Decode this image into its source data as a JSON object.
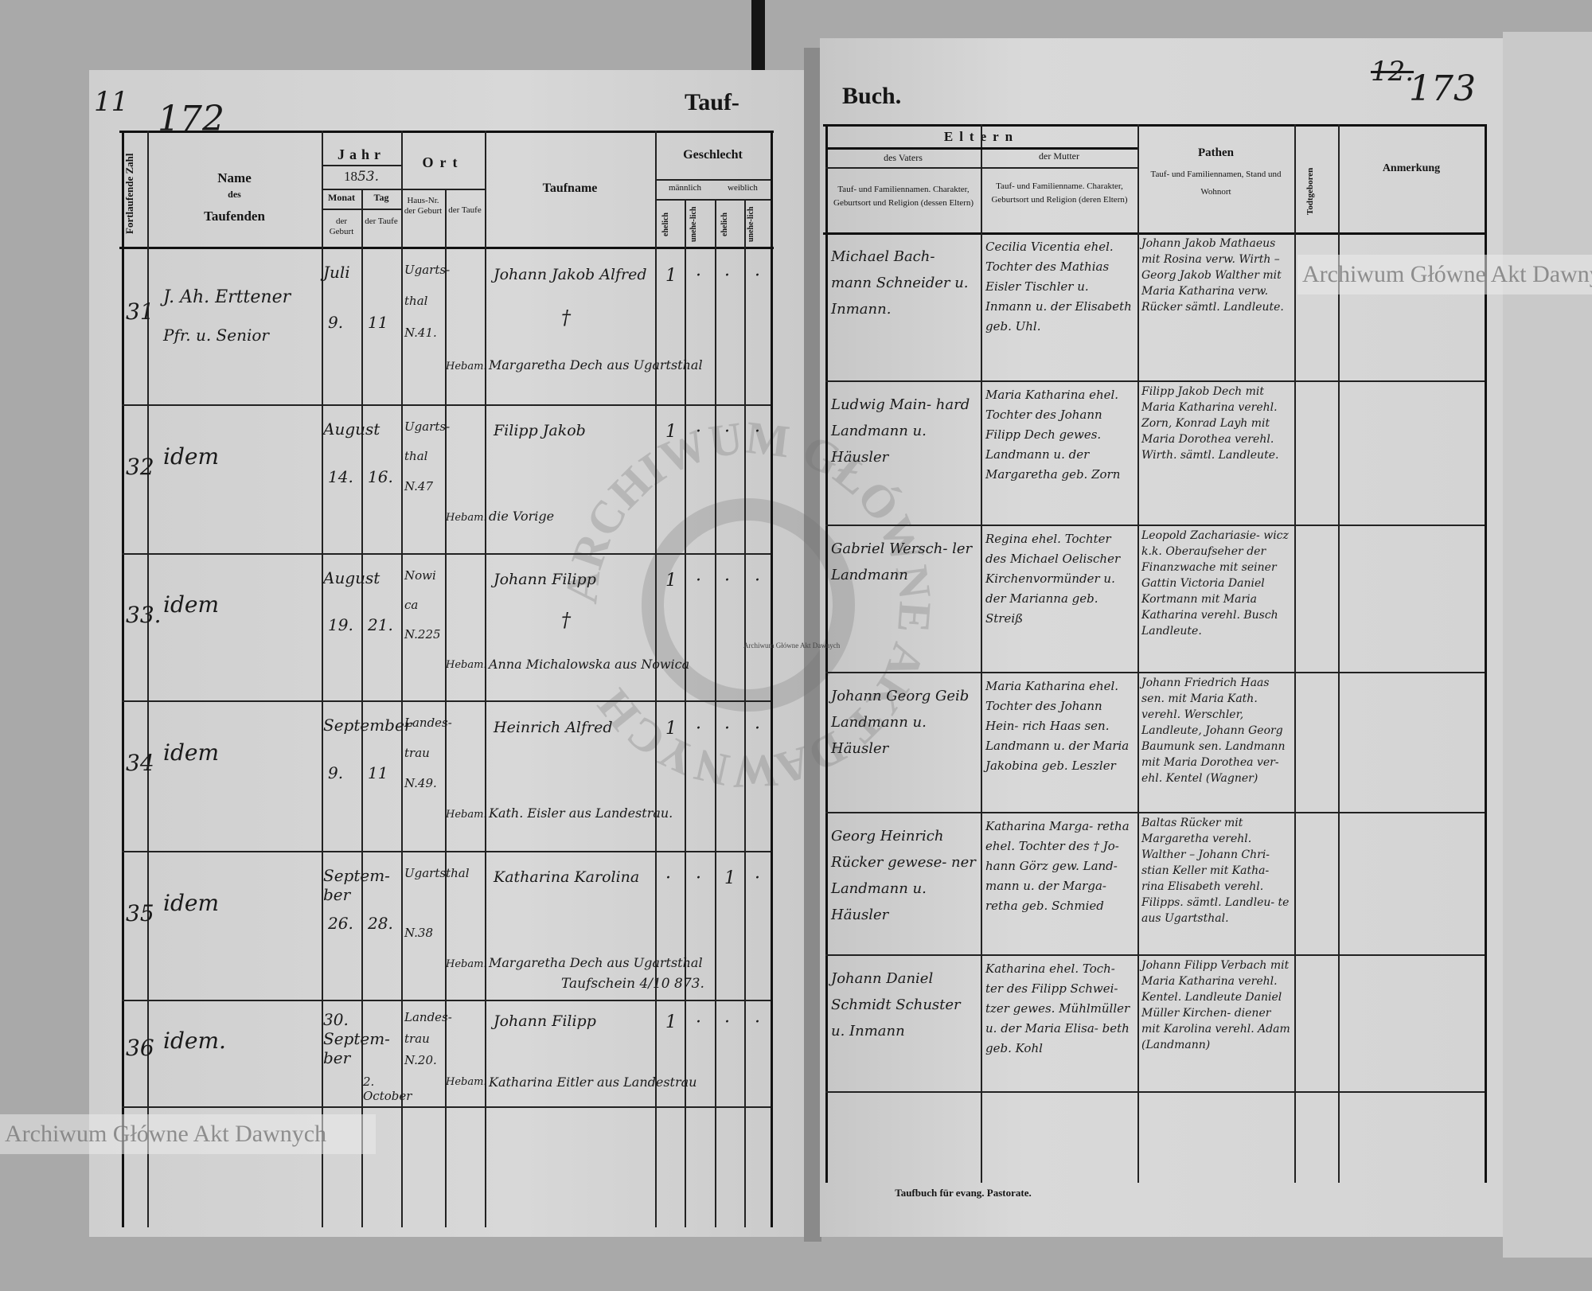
{
  "page_numbers": {
    "left_mark": "11",
    "left": "172",
    "right_struck": "12.",
    "right": "173"
  },
  "title": {
    "left": "Tauf-",
    "right": "Buch."
  },
  "left_header": {
    "serial": "Fortlaufende Zahl",
    "name": "Name",
    "name_des": "des",
    "name_taufenden": "Taufenden",
    "jahr": "Jahr",
    "year_printed": "18",
    "year_written": "53.",
    "monat": "Monat",
    "tag": "Tag",
    "der_geburt": "der Geburt",
    "der_taufe": "der Taufe",
    "ort": "Ort",
    "haus_nr": "Haus-Nr. der Geburt",
    "ort_taufe": "der Taufe",
    "taufname": "Taufname",
    "geschlecht": "Geschlecht",
    "maennlich": "männlich",
    "weiblich": "weiblich",
    "ehelich": "ehelich",
    "unehelich": "unehe-lich"
  },
  "right_header": {
    "eltern": "Eltern",
    "vater": "des Vaters",
    "mutter": "der Mutter",
    "vater_desc": "Tauf- und Familiennamen. Charakter, Geburtsort und Religion (dessen Eltern)",
    "mutter_desc": "Tauf- und Familienname. Charakter, Geburtsort und Religion (deren Eltern)",
    "pathen": "Pathen",
    "pathen_desc": "Tauf- und Familiennamen, Stand und Wohnort",
    "todtgeboren": "Todtgeboren",
    "anmerkung": "Anmerkung"
  },
  "entries": [
    {
      "no": "31",
      "name": [
        "J. Ah. Erttener",
        "Pfr. u. Senior"
      ],
      "month": "Juli",
      "day_birth": "9.",
      "day_baptism": "11",
      "house": [
        "Ugarts-",
        "thal",
        "N.41."
      ],
      "hebamme_label": "Hebam.",
      "taufname": "Johann Jakob Alfred",
      "cross": "†",
      "hebamme": "Margaretha Dech aus Ugartsthal",
      "extra": "",
      "sex": {
        "m_ehelich": "1",
        "m_unehelich": "·",
        "w_ehelich": "·",
        "w_unehelich": "·"
      },
      "father": "Michael Bach- mann Schneider u. Inmann.",
      "mother": "Cecilia Vicentia ehel. Tochter des Mathias Eisler Tischler u. Inmann u. der Elisabeth geb. Uhl.",
      "godparents": "Johann Jakob Mathaeus mit Rosina verw. Wirth – Georg Jakob Walther mit Maria Katharina verw. Rücker sämtl. Landleute."
    },
    {
      "no": "32",
      "name": [
        "idem",
        ""
      ],
      "month": "August",
      "day_birth": "14.",
      "day_baptism": "16.",
      "house": [
        "Ugarts-",
        "thal",
        "N.47"
      ],
      "hebamme_label": "Hebam.",
      "taufname": "Filipp Jakob",
      "cross": "",
      "hebamme": "die Vorige",
      "extra": "",
      "sex": {
        "m_ehelich": "1",
        "m_unehelich": "·",
        "w_ehelich": "·",
        "w_unehelich": "·"
      },
      "father": "Ludwig Main- hard Landmann u. Häusler",
      "mother": "Maria Katharina ehel. Tochter des Johann Filipp Dech gewes. Landmann u. der Margaretha geb. Zorn",
      "godparents": "Filipp Jakob Dech mit Maria Katharina verehl. Zorn, Konrad Layh mit Maria Dorothea verehl. Wirth. sämtl. Landleute."
    },
    {
      "no": "33.",
      "name": [
        "idem",
        ""
      ],
      "month": "August",
      "day_birth": "19.",
      "day_baptism": "21.",
      "house": [
        "Nowi",
        "ca",
        "N.225"
      ],
      "hebamme_label": "Hebam.",
      "taufname": "Johann Filipp",
      "cross": "†",
      "hebamme": "Anna Michalowska aus Nowica",
      "extra": "",
      "sex": {
        "m_ehelich": "1",
        "m_unehelich": "·",
        "w_ehelich": "·",
        "w_unehelich": "·"
      },
      "father": "Gabriel Wersch- ler Landmann",
      "mother": "Regina ehel. Tochter des Michael Oelischer Kirchenvormünder u. der Marianna geb. Streiß",
      "godparents": "Leopold Zachariasie- wicz k.k. Oberaufseher der Finanzwache mit seiner Gattin Victoria Daniel Kortmann mit Maria Katharina verehl. Busch Landleute."
    },
    {
      "no": "34",
      "name": [
        "idem",
        ""
      ],
      "month": "September",
      "day_birth": "9.",
      "day_baptism": "11",
      "house": [
        "Landes-",
        "trau",
        "N.49."
      ],
      "hebamme_label": "Hebam.",
      "taufname": "Heinrich Alfred",
      "cross": "",
      "hebamme": "Kath. Eisler aus Landestrau.",
      "extra": "",
      "sex": {
        "m_ehelich": "1",
        "m_unehelich": "·",
        "w_ehelich": "·",
        "w_unehelich": "·"
      },
      "father": "Johann Georg Geib Landmann u. Häusler",
      "mother": "Maria Katharina ehel. Tochter des Johann Hein- rich Haas sen. Landmann u. der Maria Jakobina geb. Leszler",
      "godparents": "Johann Friedrich Haas sen. mit Maria Kath. verehl. Werschler, Landleute, Johann Georg Baumunk sen. Landmann mit Maria Dorothea ver- ehl. Kentel (Wagner)"
    },
    {
      "no": "35",
      "name": [
        "idem",
        ""
      ],
      "month": "Septem- ber",
      "day_birth": "26.",
      "day_baptism": "28.",
      "house": [
        "Ugartsthal",
        "",
        "N.38"
      ],
      "hebamme_label": "Hebam.",
      "taufname": "Katharina Karolina",
      "cross": "",
      "hebamme": "Margaretha Dech aus Ugartsthal",
      "extra": "Taufschein 4/10 873.",
      "sex": {
        "m_ehelich": "·",
        "m_unehelich": "·",
        "w_ehelich": "1",
        "w_unehelich": "·"
      },
      "father": "Georg Heinrich Rücker gewese- ner Landmann u. Häusler",
      "mother": "Katharina Marga- retha ehel. Tochter des † Jo- hann Görz gew. Land- mann u. der Marga- retha geb. Schmied",
      "godparents": "Baltas Rücker mit Margaretha verehl. Walther – Johann Chri- stian Keller mit Katha- rina Elisabeth verehl. Filipps. sämtl. Landleu- te aus Ugartsthal."
    },
    {
      "no": "36",
      "name": [
        "idem.",
        ""
      ],
      "month": "30. Septem- ber",
      "day_birth": "",
      "day_baptism": "2. October",
      "house": [
        "Landes-",
        "trau",
        "N.20."
      ],
      "hebamme_label": "Hebam.",
      "taufname": "Johann Filipp",
      "cross": "",
      "hebamme": "Katharina Eitler aus Landestrau",
      "extra": "",
      "sex": {
        "m_ehelich": "1",
        "m_unehelich": "·",
        "w_ehelich": "·",
        "w_unehelich": "·"
      },
      "father": "Johann Daniel Schmidt Schuster u. Inmann",
      "mother": "Katharina ehel. Toch- ter des Filipp Schwei- tzer gewes. Mühlmüller u. der Maria Elisa- beth geb. Kohl",
      "godparents": "Johann Filipp Verbach mit Maria Katharina verehl. Kentel. Landleute Daniel Müller Kirchen- diener mit Karolina verehl. Adam (Landmann)"
    }
  ],
  "footer": "Taufbuch für evang. Pastorate.",
  "watermark": {
    "text": "Archiwum Główne Akt Dawnych",
    "seal": "ARCHIWUM GŁÓWNE AKT DAWNYCH"
  },
  "colors": {
    "paper": "#d3d3d3",
    "ink": "#1a1a1a",
    "background": "#a9a9a9"
  }
}
